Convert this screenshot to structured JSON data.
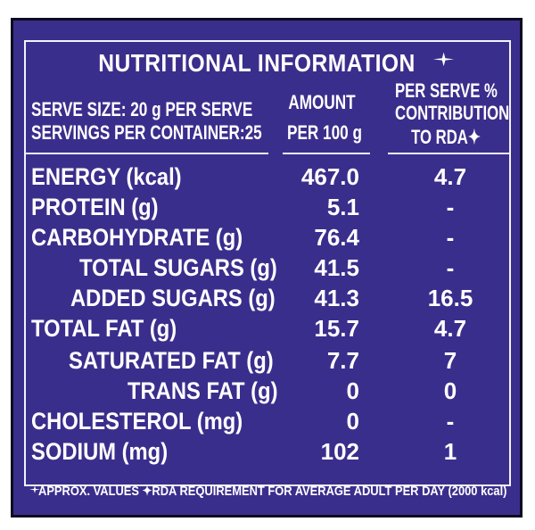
{
  "title": "NUTRITIONAL INFORMATION",
  "header": {
    "serve_size": "SERVE SIZE: 20 g PER SERVE",
    "servings": "SERVINGS PER CONTAINER:25",
    "amount_line1": "AMOUNT",
    "amount_line2": "PER 100 g",
    "rda_line1": "PER SERVE %",
    "rda_line2": "CONTRIBUTION",
    "rda_line3": "TO RDA✦"
  },
  "rows": [
    {
      "label": "ENERGY (kcal)",
      "amount": "467.0",
      "rda": "4.7"
    },
    {
      "label": "PROTEIN (g)",
      "amount": "5.1",
      "rda": "-"
    },
    {
      "label": "CARBOHYDRATE (g)",
      "amount": "76.4",
      "rda": "-"
    },
    {
      "label": "TOTAL SUGARS (g)",
      "amount": "41.5",
      "rda": "-"
    },
    {
      "label": "ADDED SUGARS (g)",
      "amount": "41.3",
      "rda": "16.5"
    },
    {
      "label": "TOTAL FAT (g)",
      "amount": "15.7",
      "rda": "4.7"
    },
    {
      "label": "SATURATED FAT (g)",
      "amount": "7.7",
      "rda": "7"
    },
    {
      "label": "TRANS FAT (g)",
      "amount": "0",
      "rda": "0"
    },
    {
      "label": "CHOLESTEROL (mg)",
      "amount": "0",
      "rda": "-"
    },
    {
      "label": "SODIUM (mg)",
      "amount": "102",
      "rda": "1"
    }
  ],
  "footer": "APPROX. VALUES ✦RDA REQUIREMENT FOR AVERAGE ADULT PER DAY (2000 kcal)",
  "colors": {
    "panel": "#3a2e8c",
    "text": "#ffffff",
    "border": "#0d0b20"
  }
}
